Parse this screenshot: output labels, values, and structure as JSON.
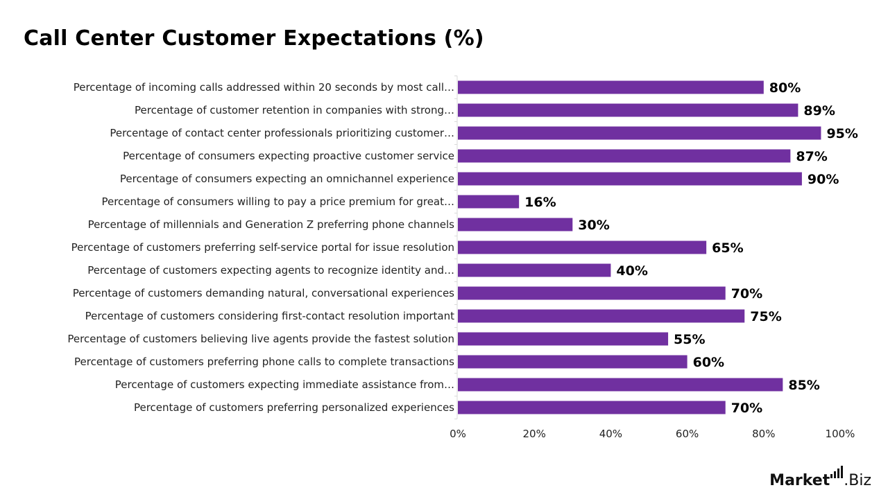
{
  "title": "Call Center Customer Expectations (%)",
  "brand": {
    "name_bold": "Market",
    "name_light": ".Biz"
  },
  "colors": {
    "bar": "#7030A0"
  },
  "chart_data": {
    "type": "bar",
    "orientation": "horizontal",
    "title": "Call Center Customer Expectations (%)",
    "categories": [
      "Percentage of incoming calls addressed within 20 seconds by most call…",
      "Percentage of customer retention in companies with strong…",
      "Percentage of contact center professionals prioritizing customer…",
      "Percentage of consumers expecting proactive customer service",
      "Percentage of consumers expecting an omnichannel experience",
      "Percentage of consumers willing to pay a price premium for great…",
      "Percentage of millennials and Generation Z preferring phone channels",
      "Percentage of customers preferring self-service portal for issue resolution",
      "Percentage of customers expecting agents to recognize identity and…",
      "Percentage of customers demanding natural, conversational experiences",
      "Percentage of customers considering first-contact resolution important",
      "Percentage of customers believing live agents provide the fastest solution",
      "Percentage of customers preferring phone calls to complete transactions",
      "Percentage of customers expecting immediate assistance from…",
      "Percentage of customers preferring personalized experiences"
    ],
    "values": [
      80,
      89,
      95,
      87,
      90,
      16,
      30,
      65,
      40,
      70,
      75,
      55,
      60,
      85,
      70
    ],
    "value_labels": [
      "80%",
      "89%",
      "95%",
      "87%",
      "90%",
      "16%",
      "30%",
      "65%",
      "40%",
      "70%",
      "75%",
      "55%",
      "60%",
      "85%",
      "70%"
    ],
    "xlim": [
      0,
      100
    ],
    "xticks": [
      0,
      20,
      40,
      60,
      80,
      100
    ],
    "xtick_labels": [
      "0%",
      "20%",
      "40%",
      "60%",
      "80%",
      "100%"
    ],
    "grid": false,
    "legend": "none"
  }
}
